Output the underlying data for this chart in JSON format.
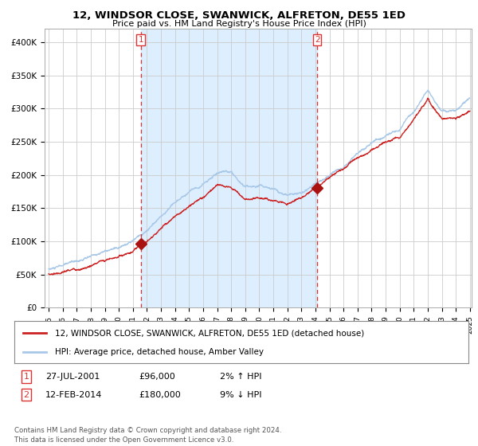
{
  "title": "12, WINDSOR CLOSE, SWANWICK, ALFRETON, DE55 1ED",
  "subtitle": "Price paid vs. HM Land Registry's House Price Index (HPI)",
  "ylim": [
    0,
    420000
  ],
  "yticks": [
    0,
    50000,
    100000,
    150000,
    200000,
    250000,
    300000,
    350000,
    400000
  ],
  "ytick_labels": [
    "£0",
    "£50K",
    "£100K",
    "£150K",
    "£200K",
    "£250K",
    "£300K",
    "£350K",
    "£400K"
  ],
  "x_start_year": 1995,
  "x_end_year": 2025,
  "hpi_color": "#a8c8e8",
  "price_color": "#cc2222",
  "dashed_line_color": "#dd3333",
  "shade_color": "#ddeeff",
  "marker_color": "#aa1111",
  "background_color": "#ffffff",
  "grid_color": "#cccccc",
  "sale1_year": 2001.57,
  "sale1_price": 96000,
  "sale2_year": 2014.12,
  "sale2_price": 180000,
  "legend_line1": "12, WINDSOR CLOSE, SWANWICK, ALFRETON, DE55 1ED (detached house)",
  "legend_line2": "HPI: Average price, detached house, Amber Valley",
  "annotation1_label": "1",
  "annotation1_date": "27-JUL-2001",
  "annotation1_price": "£96,000",
  "annotation1_hpi": "2% ↑ HPI",
  "annotation2_label": "2",
  "annotation2_date": "12-FEB-2014",
  "annotation2_price": "£180,000",
  "annotation2_hpi": "9% ↓ HPI",
  "footer": "Contains HM Land Registry data © Crown copyright and database right 2024.\nThis data is licensed under the Open Government Licence v3.0."
}
